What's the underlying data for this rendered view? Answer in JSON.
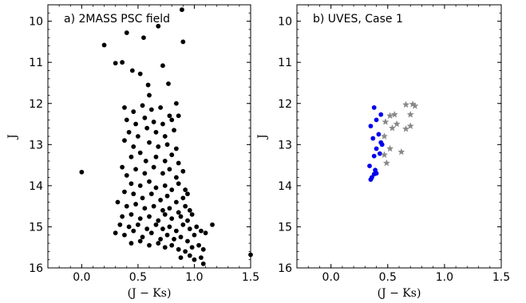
{
  "chart_data": [
    {
      "type": "scatter",
      "panel_label": "a) 2MASS PSC field",
      "xlabel": "(J − Ks)",
      "ylabel": "J",
      "xlim": [
        -0.3,
        1.5
      ],
      "ylim": [
        16.0,
        9.6
      ],
      "y_inverted": true,
      "xticks": [
        0.0,
        0.5,
        1.0,
        1.5
      ],
      "xtick_labels": [
        "0.0",
        "0.5",
        "1.0",
        "1.5"
      ],
      "yticks": [
        10,
        11,
        12,
        13,
        14,
        15,
        16
      ],
      "ytick_labels": [
        "10",
        "11",
        "12",
        "13",
        "14",
        "15",
        "16"
      ],
      "grid": false,
      "series": [
        {
          "marker": "circle",
          "color": "#000000",
          "points": [
            [
              0.89,
              9.72
            ],
            [
              0.4,
              10.28
            ],
            [
              0.68,
              10.12
            ],
            [
              0.9,
              10.5
            ],
            [
              0.2,
              10.58
            ],
            [
              0.55,
              10.4
            ],
            [
              0.3,
              11.02
            ],
            [
              0.45,
              11.2
            ],
            [
              0.72,
              11.08
            ],
            [
              0.59,
              11.55
            ],
            [
              0.77,
              11.52
            ],
            [
              0.52,
              11.28
            ],
            [
              0.36,
              11.0
            ],
            [
              0.6,
              11.8
            ],
            [
              0.38,
              12.1
            ],
            [
              0.46,
              12.2
            ],
            [
              0.54,
              12.05
            ],
            [
              0.62,
              12.15
            ],
            [
              0.7,
              12.1
            ],
            [
              0.84,
              12.0
            ],
            [
              0.78,
              12.3
            ],
            [
              0.4,
              12.4
            ],
            [
              0.48,
              12.5
            ],
            [
              0.56,
              12.35
            ],
            [
              0.64,
              12.45
            ],
            [
              0.72,
              12.5
            ],
            [
              0.8,
              12.4
            ],
            [
              0.86,
              12.3
            ],
            [
              0.42,
              12.7
            ],
            [
              0.5,
              12.8
            ],
            [
              0.58,
              12.6
            ],
            [
              0.66,
              12.7
            ],
            [
              0.74,
              12.8
            ],
            [
              0.82,
              12.65
            ],
            [
              0.38,
              12.9
            ],
            [
              0.46,
              13.05
            ],
            [
              0.6,
              12.95
            ],
            [
              0.68,
              13.05
            ],
            [
              0.76,
              13.0
            ],
            [
              0.84,
              13.1
            ],
            [
              0.44,
              13.3
            ],
            [
              0.52,
              13.2
            ],
            [
              0.57,
              13.4
            ],
            [
              0.66,
              13.3
            ],
            [
              0.74,
              13.4
            ],
            [
              0.8,
              13.25
            ],
            [
              0.86,
              13.45
            ],
            [
              0.36,
              13.55
            ],
            [
              0.48,
              13.6
            ],
            [
              0.56,
              13.7
            ],
            [
              0.64,
              13.55
            ],
            [
              0.72,
              13.7
            ],
            [
              0.78,
              13.6
            ],
            [
              0.84,
              13.8
            ],
            [
              0.9,
              13.65
            ],
            [
              0.0,
              13.67
            ],
            [
              0.4,
              13.75
            ],
            [
              0.44,
              13.95
            ],
            [
              0.52,
              14.0
            ],
            [
              0.6,
              13.9
            ],
            [
              0.66,
              14.05
            ],
            [
              0.74,
              14.0
            ],
            [
              0.8,
              14.1
            ],
            [
              0.86,
              13.95
            ],
            [
              0.92,
              14.1
            ],
            [
              0.38,
              14.15
            ],
            [
              0.46,
              14.2
            ],
            [
              0.54,
              14.3
            ],
            [
              0.62,
              14.2
            ],
            [
              0.7,
              14.35
            ],
            [
              0.76,
              14.25
            ],
            [
              0.84,
              14.4
            ],
            [
              0.9,
              14.3
            ],
            [
              0.94,
              14.2
            ],
            [
              0.32,
              14.4
            ],
            [
              0.4,
              14.5
            ],
            [
              0.48,
              14.45
            ],
            [
              0.56,
              14.55
            ],
            [
              0.64,
              14.5
            ],
            [
              0.72,
              14.6
            ],
            [
              0.78,
              14.55
            ],
            [
              0.86,
              14.65
            ],
            [
              0.92,
              14.5
            ],
            [
              0.96,
              14.6
            ],
            [
              0.36,
              14.75
            ],
            [
              0.44,
              14.7
            ],
            [
              0.52,
              14.8
            ],
            [
              0.6,
              14.75
            ],
            [
              0.68,
              14.85
            ],
            [
              0.74,
              14.7
            ],
            [
              0.8,
              14.8
            ],
            [
              0.88,
              14.75
            ],
            [
              0.94,
              14.85
            ],
            [
              0.98,
              14.7
            ],
            [
              0.34,
              14.95
            ],
            [
              0.42,
              15.0
            ],
            [
              0.5,
              14.95
            ],
            [
              0.58,
              15.05
            ],
            [
              0.66,
              14.95
            ],
            [
              0.72,
              15.05
            ],
            [
              0.78,
              15.0
            ],
            [
              0.84,
              15.1
            ],
            [
              0.9,
              14.95
            ],
            [
              0.96,
              15.05
            ],
            [
              1.02,
              15.0
            ],
            [
              1.06,
              15.1
            ],
            [
              1.16,
              14.95
            ],
            [
              0.3,
              15.15
            ],
            [
              0.38,
              15.2
            ],
            [
              0.46,
              15.1
            ],
            [
              0.54,
              15.25
            ],
            [
              0.62,
              15.15
            ],
            [
              0.7,
              15.3
            ],
            [
              0.76,
              15.2
            ],
            [
              0.82,
              15.3
            ],
            [
              0.88,
              15.25
            ],
            [
              0.94,
              15.35
            ],
            [
              1.0,
              15.2
            ],
            [
              1.1,
              15.15
            ],
            [
              0.44,
              15.4
            ],
            [
              0.52,
              15.35
            ],
            [
              0.6,
              15.45
            ],
            [
              0.68,
              15.4
            ],
            [
              0.74,
              15.5
            ],
            [
              0.8,
              15.45
            ],
            [
              0.86,
              15.55
            ],
            [
              0.92,
              15.6
            ],
            [
              0.98,
              15.5
            ],
            [
              1.04,
              15.45
            ],
            [
              1.08,
              15.55
            ],
            [
              0.88,
              15.75
            ],
            [
              0.96,
              15.7
            ],
            [
              1.0,
              15.8
            ],
            [
              1.06,
              15.75
            ],
            [
              1.08,
              15.9
            ],
            [
              1.5,
              15.68
            ]
          ]
        }
      ]
    },
    {
      "type": "scatter",
      "panel_label": "b) UVES, Case 1",
      "xlabel": "(J − Ks)",
      "ylabel": "J",
      "xlim": [
        -0.3,
        1.5
      ],
      "ylim": [
        16.0,
        9.6
      ],
      "y_inverted": true,
      "xticks": [
        0.0,
        0.5,
        1.0,
        1.5
      ],
      "xtick_labels": [
        "0.0",
        "0.5",
        "1.0",
        "1.5"
      ],
      "yticks": [
        10,
        11,
        12,
        13,
        14,
        15,
        16
      ],
      "ytick_labels": [
        "10",
        "11",
        "12",
        "13",
        "14",
        "15",
        "16"
      ],
      "grid": false,
      "series": [
        {
          "marker": "circle",
          "color": "#0000ee",
          "points": [
            [
              0.38,
              12.1
            ],
            [
              0.44,
              12.27
            ],
            [
              0.35,
              12.55
            ],
            [
              0.4,
              12.4
            ],
            [
              0.42,
              12.75
            ],
            [
              0.37,
              12.85
            ],
            [
              0.44,
              12.95
            ],
            [
              0.45,
              13.0
            ],
            [
              0.4,
              13.1
            ],
            [
              0.38,
              13.28
            ],
            [
              0.43,
              13.22
            ],
            [
              0.34,
              13.52
            ],
            [
              0.39,
              13.62
            ],
            [
              0.38,
              13.72
            ],
            [
              0.4,
              13.7
            ],
            [
              0.36,
              13.8
            ],
            [
              0.35,
              13.85
            ]
          ]
        },
        {
          "marker": "star",
          "color": "#888888",
          "points": [
            [
              0.72,
              12.02
            ],
            [
              0.66,
              12.03
            ],
            [
              0.74,
              12.06
            ],
            [
              0.56,
              12.27
            ],
            [
              0.52,
              12.3
            ],
            [
              0.7,
              12.27
            ],
            [
              0.58,
              12.5
            ],
            [
              0.48,
              12.45
            ],
            [
              0.54,
              12.6
            ],
            [
              0.66,
              12.62
            ],
            [
              0.7,
              12.55
            ],
            [
              0.47,
              12.8
            ],
            [
              0.52,
              13.1
            ],
            [
              0.62,
              13.18
            ],
            [
              0.47,
              13.25
            ],
            [
              0.49,
              13.45
            ]
          ]
        }
      ]
    }
  ]
}
